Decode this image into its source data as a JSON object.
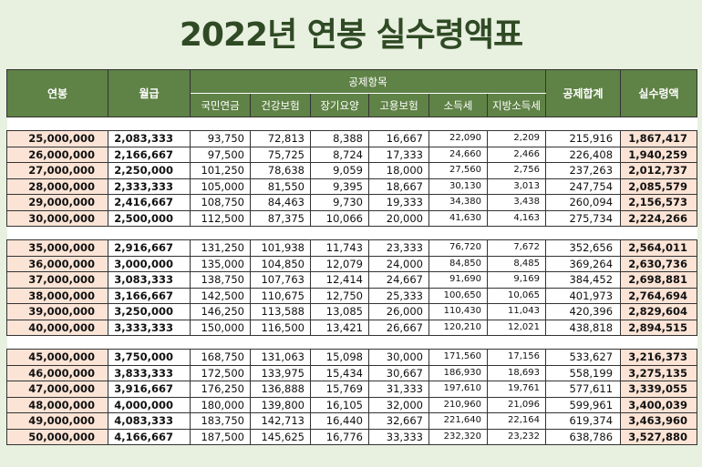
{
  "title": "2022년 연봉 실수령액표",
  "headers": {
    "salary": "연봉",
    "monthly": "월급",
    "deduction_group": "공제항목",
    "pension": "국민연금",
    "health": "건강보험",
    "longterm": "장기요양",
    "employment": "고용보험",
    "income_tax": "소득세",
    "local_tax": "지방소득세",
    "total_deduction": "공제합계",
    "net": "실수령액"
  },
  "groups": [
    [
      [
        "25,000,000",
        "2,083,333",
        "93,750",
        "72,813",
        "8,388",
        "16,667",
        "22,090",
        "2,209",
        "215,916",
        "1,867,417"
      ],
      [
        "26,000,000",
        "2,166,667",
        "97,500",
        "75,725",
        "8,724",
        "17,333",
        "24,660",
        "2,466",
        "226,408",
        "1,940,259"
      ],
      [
        "27,000,000",
        "2,250,000",
        "101,250",
        "78,638",
        "9,059",
        "18,000",
        "27,560",
        "2,756",
        "237,263",
        "2,012,737"
      ],
      [
        "28,000,000",
        "2,333,333",
        "105,000",
        "81,550",
        "9,395",
        "18,667",
        "30,130",
        "3,013",
        "247,754",
        "2,085,579"
      ],
      [
        "29,000,000",
        "2,416,667",
        "108,750",
        "84,463",
        "9,730",
        "19,333",
        "34,380",
        "3,438",
        "260,094",
        "2,156,573"
      ],
      [
        "30,000,000",
        "2,500,000",
        "112,500",
        "87,375",
        "10,066",
        "20,000",
        "41,630",
        "4,163",
        "275,734",
        "2,224,266"
      ]
    ],
    [
      [
        "35,000,000",
        "2,916,667",
        "131,250",
        "101,938",
        "11,743",
        "23,333",
        "76,720",
        "7,672",
        "352,656",
        "2,564,011"
      ],
      [
        "36,000,000",
        "3,000,000",
        "135,000",
        "104,850",
        "12,079",
        "24,000",
        "84,850",
        "8,485",
        "369,264",
        "2,630,736"
      ],
      [
        "37,000,000",
        "3,083,333",
        "138,750",
        "107,763",
        "12,414",
        "24,667",
        "91,690",
        "9,169",
        "384,452",
        "2,698,881"
      ],
      [
        "38,000,000",
        "3,166,667",
        "142,500",
        "110,675",
        "12,750",
        "25,333",
        "100,650",
        "10,065",
        "401,973",
        "2,764,694"
      ],
      [
        "39,000,000",
        "3,250,000",
        "146,250",
        "113,588",
        "13,085",
        "26,000",
        "110,430",
        "11,043",
        "420,396",
        "2,829,604"
      ],
      [
        "40,000,000",
        "3,333,333",
        "150,000",
        "116,500",
        "13,421",
        "26,667",
        "120,210",
        "12,021",
        "438,818",
        "2,894,515"
      ]
    ],
    [
      [
        "45,000,000",
        "3,750,000",
        "168,750",
        "131,063",
        "15,098",
        "30,000",
        "171,560",
        "17,156",
        "533,627",
        "3,216,373"
      ],
      [
        "46,000,000",
        "3,833,333",
        "172,500",
        "133,975",
        "15,434",
        "30,667",
        "186,930",
        "18,693",
        "558,199",
        "3,275,135"
      ],
      [
        "47,000,000",
        "3,916,667",
        "176,250",
        "136,888",
        "15,769",
        "31,333",
        "197,610",
        "19,761",
        "577,611",
        "3,339,055"
      ],
      [
        "48,000,000",
        "4,000,000",
        "180,000",
        "139,800",
        "16,105",
        "32,000",
        "210,960",
        "21,096",
        "599,961",
        "3,400,039"
      ],
      [
        "49,000,000",
        "4,083,333",
        "183,750",
        "142,713",
        "16,440",
        "32,667",
        "221,640",
        "22,164",
        "619,374",
        "3,463,960"
      ],
      [
        "50,000,000",
        "4,166,667",
        "187,500",
        "145,625",
        "16,776",
        "33,333",
        "232,320",
        "23,232",
        "638,786",
        "3,527,880"
      ]
    ]
  ]
}
